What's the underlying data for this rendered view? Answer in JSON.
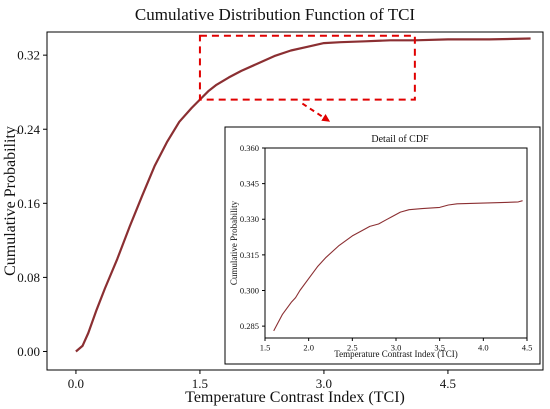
{
  "chart_data": [
    {
      "type": "line",
      "title": "Cumulative Distribution Function of TCI",
      "xlabel": "Temperature Contrast Index (TCI)",
      "ylabel": "Cumulative Probability",
      "xlim": [
        -0.35,
        5.65
      ],
      "ylim": [
        -0.02,
        0.345
      ],
      "xticks": [
        0.0,
        1.5,
        3.0,
        4.5
      ],
      "xtick_labels": [
        "0.0",
        "1.5",
        "3.0",
        "4.5"
      ],
      "yticks": [
        0.0,
        0.08,
        0.16,
        0.24,
        0.32
      ],
      "ytick_labels": [
        "0.00",
        "0.08",
        "0.16",
        "0.24",
        "0.32"
      ],
      "grid": false,
      "series": [
        {
          "color": "#8b2f32",
          "x": [
            0.0,
            0.08,
            0.15,
            0.25,
            0.35,
            0.5,
            0.65,
            0.8,
            0.95,
            1.1,
            1.25,
            1.4,
            1.5,
            1.6,
            1.7,
            1.85,
            2.0,
            2.2,
            2.4,
            2.6,
            2.8,
            3.0,
            3.2,
            3.5,
            3.8,
            4.1,
            4.5,
            5.0,
            5.5
          ],
          "y": [
            0.0,
            0.006,
            0.02,
            0.045,
            0.068,
            0.1,
            0.135,
            0.168,
            0.2,
            0.226,
            0.248,
            0.263,
            0.272,
            0.281,
            0.288,
            0.296,
            0.303,
            0.311,
            0.319,
            0.325,
            0.329,
            0.333,
            0.334,
            0.335,
            0.336,
            0.336,
            0.337,
            0.337,
            0.338
          ]
        }
      ],
      "highlight_box": {
        "x_range": [
          1.5,
          4.1
        ],
        "y_range": [
          0.272,
          0.341
        ],
        "color": "#e00000"
      }
    },
    {
      "type": "line",
      "title": "Detail of CDF",
      "xlabel": "Temperature Contrast Index (TCI)",
      "ylabel": "Cumulative Probability",
      "xlim": [
        1.5,
        4.5
      ],
      "ylim": [
        0.28,
        0.36
      ],
      "xticks": [
        1.5,
        2.0,
        2.5,
        3.0,
        3.5,
        4.0,
        4.5
      ],
      "xtick_labels": [
        "1.5",
        "2.0",
        "2.5",
        "3.0",
        "3.5",
        "4.0",
        "4.5"
      ],
      "yticks": [
        0.285,
        0.3,
        0.315,
        0.33,
        0.345,
        0.36
      ],
      "ytick_labels": [
        "0.285",
        "0.300",
        "0.315",
        "0.330",
        "0.345",
        "0.360"
      ],
      "grid": false,
      "series": [
        {
          "color": "#8b2f32",
          "x": [
            1.6,
            1.7,
            1.8,
            1.85,
            1.9,
            2.0,
            2.1,
            2.2,
            2.35,
            2.5,
            2.6,
            2.7,
            2.8,
            2.9,
            2.95,
            3.0,
            3.05,
            3.15,
            3.3,
            3.5,
            3.6,
            3.7,
            4.0,
            4.2,
            4.4,
            4.45
          ],
          "y": [
            0.283,
            0.29,
            0.295,
            0.297,
            0.3,
            0.305,
            0.31,
            0.314,
            0.319,
            0.323,
            0.325,
            0.327,
            0.328,
            0.33,
            0.331,
            0.332,
            0.333,
            0.334,
            0.3345,
            0.335,
            0.336,
            0.3365,
            0.3368,
            0.337,
            0.3373,
            0.3378
          ]
        }
      ]
    }
  ]
}
